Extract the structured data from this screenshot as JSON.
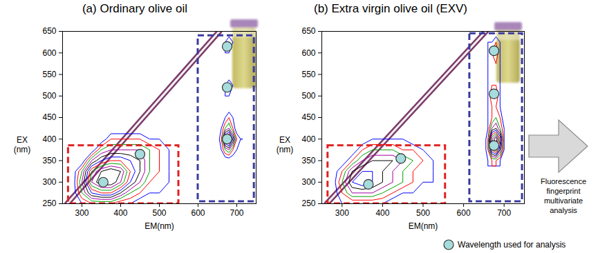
{
  "chart_data": [
    {
      "type": "contour",
      "title": "(a) Ordinary olive oil",
      "x_label": "EM(nm)",
      "y_label": [
        "EX",
        "(nm)"
      ],
      "xlim": [
        250,
        750
      ],
      "ylim": [
        250,
        650
      ],
      "xticks": [
        300,
        400,
        500,
        600,
        700
      ],
      "yticks": [
        250,
        300,
        350,
        400,
        450,
        500,
        550,
        600,
        650
      ],
      "contour_levels": [
        1,
        2,
        3,
        4,
        5,
        6,
        7,
        8,
        9,
        10
      ],
      "contour_colors": [
        "#0000ff",
        "#ff0000",
        "#00a000",
        "#a000a0",
        "#000000",
        "#0000ff",
        "#ff0000",
        "#00a000",
        "#a000a0",
        "#000000"
      ],
      "cells": [
        {
          "em": [
            275,
            300,
            325,
            350,
            375,
            400,
            425,
            450,
            475,
            500,
            525,
            550,
            575
          ],
          "ex": [
            250,
            275,
            300,
            325,
            350,
            375,
            400,
            425
          ],
          "values": [
            [
              0,
              1,
              2,
              2,
              2,
              1,
              1,
              0,
              0,
              0,
              0,
              0,
              0
            ],
            [
              0,
              3,
              6,
              7,
              7,
              5,
              3,
              2,
              1,
              1,
              0,
              0,
              0
            ],
            [
              0,
              4,
              9,
              11,
              11,
              9,
              6,
              4,
              2,
              1,
              1,
              0,
              0
            ],
            [
              0,
              3,
              8,
              10,
              11,
              10,
              7,
              5,
              3,
              2,
              1,
              0,
              0
            ],
            [
              0,
              0,
              4,
              6,
              7,
              7,
              6,
              5,
              3,
              2,
              1,
              0,
              0
            ],
            [
              0,
              0,
              0,
              3,
              4,
              4,
              4,
              4,
              3,
              2,
              1,
              0,
              0
            ],
            [
              0,
              0,
              0,
              0,
              2,
              2,
              2,
              2,
              1,
              1,
              0,
              0,
              0
            ],
            [
              0,
              0,
              0,
              0,
              0,
              0,
              0,
              0,
              0,
              0,
              0,
              0,
              0
            ]
          ]
        },
        {
          "em": [
            650,
            660,
            670,
            680,
            690,
            700,
            710
          ],
          "ex": [
            350,
            375,
            400,
            425,
            450,
            475,
            500,
            525,
            550,
            575,
            600,
            625,
            650
          ],
          "values": [
            [
              0,
              0,
              0,
              0,
              0,
              0,
              0
            ],
            [
              0,
              1,
              3,
              4,
              2,
              1,
              0
            ],
            [
              0,
              2,
              8,
              10,
              6,
              2,
              1
            ],
            [
              0,
              1,
              3,
              4,
              2,
              0,
              0
            ],
            [
              0,
              0,
              1,
              2,
              1,
              0,
              0
            ],
            [
              0,
              0,
              0,
              0,
              0,
              0,
              0
            ],
            [
              0,
              0,
              1,
              1,
              0,
              0,
              0
            ],
            [
              0,
              0,
              1,
              2,
              1,
              0,
              0
            ],
            [
              0,
              0,
              0,
              0,
              0,
              0,
              0
            ],
            [
              0,
              0,
              0,
              0,
              0,
              0,
              0
            ],
            [
              0,
              0,
              1,
              1,
              0,
              0,
              0
            ],
            [
              0,
              0,
              1,
              2,
              1,
              0,
              0
            ],
            [
              0,
              0,
              0,
              0,
              0,
              0,
              0
            ]
          ]
        }
      ],
      "scatter_band": {
        "em": [
          262,
          655
        ],
        "ex": [
          250,
          650
        ],
        "color": "#7b3b6b"
      },
      "markers": {
        "em": [
          355,
          450,
          675,
          675,
          675
        ],
        "ex": [
          300,
          365,
          400,
          520,
          615
        ]
      },
      "regions": [
        {
          "em": [
            265,
            550
          ],
          "ex": [
            250,
            385
          ],
          "color": "#e02020"
        },
        {
          "em": [
            600,
            745
          ],
          "ex": [
            255,
            640
          ],
          "color": "#3a3aa0"
        }
      ]
    },
    {
      "type": "contour",
      "title": "(b) Extra virgin olive oil (EXV)",
      "x_label": "EM(nm)",
      "y_label": [
        "EX",
        "(nm)"
      ],
      "xlim": [
        250,
        750
      ],
      "ylim": [
        250,
        650
      ],
      "xticks": [
        300,
        400,
        500,
        600,
        700
      ],
      "yticks": [
        250,
        300,
        350,
        400,
        450,
        500,
        550,
        600,
        650
      ],
      "contour_levels": [
        1,
        2,
        3,
        4,
        5,
        6,
        7,
        8,
        9,
        10
      ],
      "contour_colors": [
        "#0000ff",
        "#ff0000",
        "#00a000",
        "#a000a0",
        "#000000",
        "#0000ff",
        "#ff0000",
        "#00a000",
        "#a000a0",
        "#000000"
      ],
      "cells": [
        {
          "em": [
            275,
            300,
            325,
            350,
            375,
            400,
            425,
            450,
            475,
            500,
            525,
            550,
            575
          ],
          "ex": [
            250,
            275,
            300,
            325,
            350,
            375,
            400,
            425
          ],
          "values": [
            [
              0,
              1,
              1,
              1,
              1,
              1,
              0,
              0,
              0,
              0,
              0,
              0,
              0
            ],
            [
              0,
              2,
              4,
              4,
              4,
              3,
              2,
              1,
              1,
              0,
              0,
              0,
              0
            ],
            [
              0,
              3,
              6,
              7,
              6,
              5,
              4,
              3,
              2,
              1,
              1,
              0,
              0
            ],
            [
              0,
              2,
              5,
              6,
              6,
              5,
              4,
              3,
              2,
              1,
              1,
              0,
              0
            ],
            [
              0,
              0,
              2,
              4,
              5,
              5,
              5,
              4,
              3,
              2,
              1,
              0,
              0
            ],
            [
              0,
              0,
              0,
              2,
              3,
              3,
              3,
              2,
              2,
              1,
              0,
              0,
              0
            ],
            [
              0,
              0,
              0,
              0,
              1,
              1,
              1,
              1,
              0,
              0,
              0,
              0,
              0
            ],
            [
              0,
              0,
              0,
              0,
              0,
              0,
              0,
              0,
              0,
              0,
              0,
              0,
              0
            ]
          ]
        },
        {
          "em": [
            650,
            660,
            670,
            680,
            690,
            700,
            710
          ],
          "ex": [
            350,
            375,
            400,
            425,
            450,
            475,
            500,
            525,
            550,
            575,
            600,
            625,
            650
          ],
          "values": [
            [
              0,
              1,
              2,
              2,
              1,
              0,
              0
            ],
            [
              0,
              2,
              7,
              9,
              5,
              1,
              0
            ],
            [
              0,
              2,
              9,
              11,
              7,
              1,
              0
            ],
            [
              0,
              1,
              4,
              5,
              3,
              1,
              0
            ],
            [
              0,
              1,
              2,
              3,
              2,
              0,
              0
            ],
            [
              0,
              1,
              2,
              2,
              1,
              0,
              0
            ],
            [
              0,
              1,
              3,
              3,
              1,
              0,
              0
            ],
            [
              0,
              1,
              2,
              2,
              1,
              0,
              0
            ],
            [
              0,
              1,
              1,
              1,
              1,
              0,
              0
            ],
            [
              0,
              1,
              1,
              2,
              1,
              0,
              0
            ],
            [
              0,
              1,
              2,
              3,
              1,
              0,
              0
            ],
            [
              0,
              1,
              1,
              2,
              1,
              0,
              0
            ],
            [
              0,
              0,
              0,
              0,
              0,
              0,
              0
            ]
          ]
        }
      ],
      "scatter_band": {
        "em": [
          262,
          655
        ],
        "ex": [
          250,
          650
        ],
        "color": "#7b3b6b"
      },
      "markers": {
        "em": [
          365,
          445,
          675,
          675,
          675
        ],
        "ex": [
          295,
          355,
          385,
          505,
          605
        ]
      },
      "regions": [
        {
          "em": [
            265,
            555
          ],
          "ex": [
            250,
            385
          ],
          "color": "#e02020"
        },
        {
          "em": [
            615,
            745
          ],
          "ex": [
            255,
            645
          ],
          "color": "#3a3aa0"
        }
      ]
    }
  ],
  "annotation_lines": [
    "Fluorescence",
    "fingerprint",
    "multivariate",
    "analysis"
  ],
  "marker_legend": {
    "label": "Wavelength used for analysis",
    "color": "#a6dcdc"
  }
}
